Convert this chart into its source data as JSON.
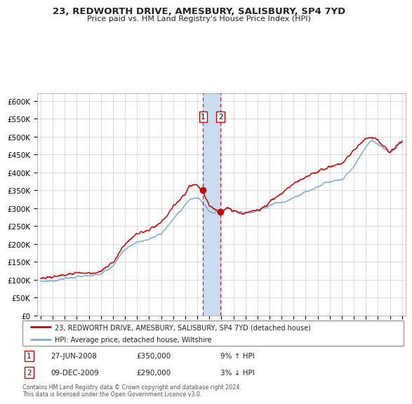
{
  "title": "23, REDWORTH DRIVE, AMESBURY, SALISBURY, SP4 7YD",
  "subtitle": "Price paid vs. HM Land Registry's House Price Index (HPI)",
  "legend_label_red": "23, REDWORTH DRIVE, AMESBURY, SALISBURY, SP4 7YD (detached house)",
  "legend_label_blue": "HPI: Average price, detached house, Wiltshire",
  "transaction1_date": "27-JUN-2008",
  "transaction1_price": 350000,
  "transaction1_pct": "9% ↑ HPI",
  "transaction1_year": 2008.49,
  "transaction2_date": "09-DEC-2009",
  "transaction2_price": 290000,
  "transaction2_pct": "3% ↓ HPI",
  "transaction2_year": 2009.94,
  "footer": "Contains HM Land Registry data © Crown copyright and database right 2024.\nThis data is licensed under the Open Government Licence v3.0.",
  "ylim": [
    0,
    620000
  ],
  "xlim_start": 1994.7,
  "xlim_end": 2025.3,
  "red_color": "#cc0000",
  "blue_color": "#7aadd4",
  "shade_color": "#c8ddf0",
  "background_color": "#ffffff",
  "grid_color": "#cccccc"
}
